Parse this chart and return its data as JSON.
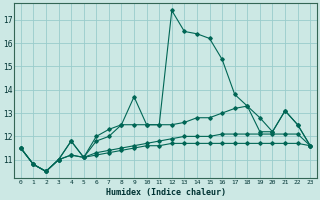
{
  "title": "",
  "xlabel": "Humidex (Indice chaleur)",
  "ylabel": "",
  "background_color": "#cce8e4",
  "grid_color": "#99cccc",
  "line_color": "#006655",
  "xlim": [
    -0.5,
    23.5
  ],
  "ylim": [
    10.2,
    17.7
  ],
  "yticks": [
    11,
    12,
    13,
    14,
    15,
    16,
    17
  ],
  "xticks": [
    0,
    1,
    2,
    3,
    4,
    5,
    6,
    7,
    8,
    9,
    10,
    11,
    12,
    13,
    14,
    15,
    16,
    17,
    18,
    19,
    20,
    21,
    22,
    23
  ],
  "xtick_labels": [
    "0",
    "1",
    "2",
    "3",
    "4",
    "5",
    "6",
    "7",
    "8",
    "9",
    "10",
    "11",
    "12",
    "13",
    "14",
    "15",
    "16",
    "17",
    "18",
    "19",
    "20",
    "21",
    "22",
    "23"
  ],
  "series": [
    {
      "x": [
        0,
        1,
        2,
        3,
        4,
        5,
        6,
        7,
        8,
        9,
        10,
        11,
        12,
        13,
        14,
        15,
        16,
        17,
        18,
        19,
        20,
        21,
        22,
        23
      ],
      "y": [
        11.5,
        10.8,
        10.5,
        11.0,
        11.2,
        11.1,
        11.2,
        11.3,
        11.4,
        11.5,
        11.6,
        11.6,
        11.7,
        11.7,
        11.7,
        11.7,
        11.7,
        11.7,
        11.7,
        11.7,
        11.7,
        11.7,
        11.7,
        11.6
      ]
    },
    {
      "x": [
        0,
        1,
        2,
        3,
        4,
        5,
        6,
        7,
        8,
        9,
        10,
        11,
        12,
        13,
        14,
        15,
        16,
        17,
        18,
        19,
        20,
        21,
        22,
        23
      ],
      "y": [
        11.5,
        10.8,
        10.5,
        11.0,
        11.8,
        11.1,
        12.0,
        12.3,
        12.5,
        13.7,
        12.5,
        12.5,
        17.4,
        16.5,
        16.4,
        16.2,
        15.3,
        13.8,
        13.3,
        12.2,
        12.2,
        13.1,
        12.5,
        11.6
      ]
    },
    {
      "x": [
        0,
        1,
        2,
        3,
        4,
        5,
        6,
        7,
        8,
        9,
        10,
        11,
        12,
        13,
        14,
        15,
        16,
        17,
        18,
        19,
        20,
        21,
        22,
        23
      ],
      "y": [
        11.5,
        10.8,
        10.5,
        11.0,
        11.8,
        11.1,
        11.8,
        12.0,
        12.5,
        12.5,
        12.5,
        12.5,
        12.5,
        12.6,
        12.8,
        12.8,
        13.0,
        13.2,
        13.3,
        12.8,
        12.2,
        13.1,
        12.5,
        11.6
      ]
    },
    {
      "x": [
        0,
        1,
        2,
        3,
        4,
        5,
        6,
        7,
        8,
        9,
        10,
        11,
        12,
        13,
        14,
        15,
        16,
        17,
        18,
        19,
        20,
        21,
        22,
        23
      ],
      "y": [
        11.5,
        10.8,
        10.5,
        11.0,
        11.2,
        11.1,
        11.3,
        11.4,
        11.5,
        11.6,
        11.7,
        11.8,
        11.9,
        12.0,
        12.0,
        12.0,
        12.1,
        12.1,
        12.1,
        12.1,
        12.1,
        12.1,
        12.1,
        11.6
      ]
    }
  ]
}
